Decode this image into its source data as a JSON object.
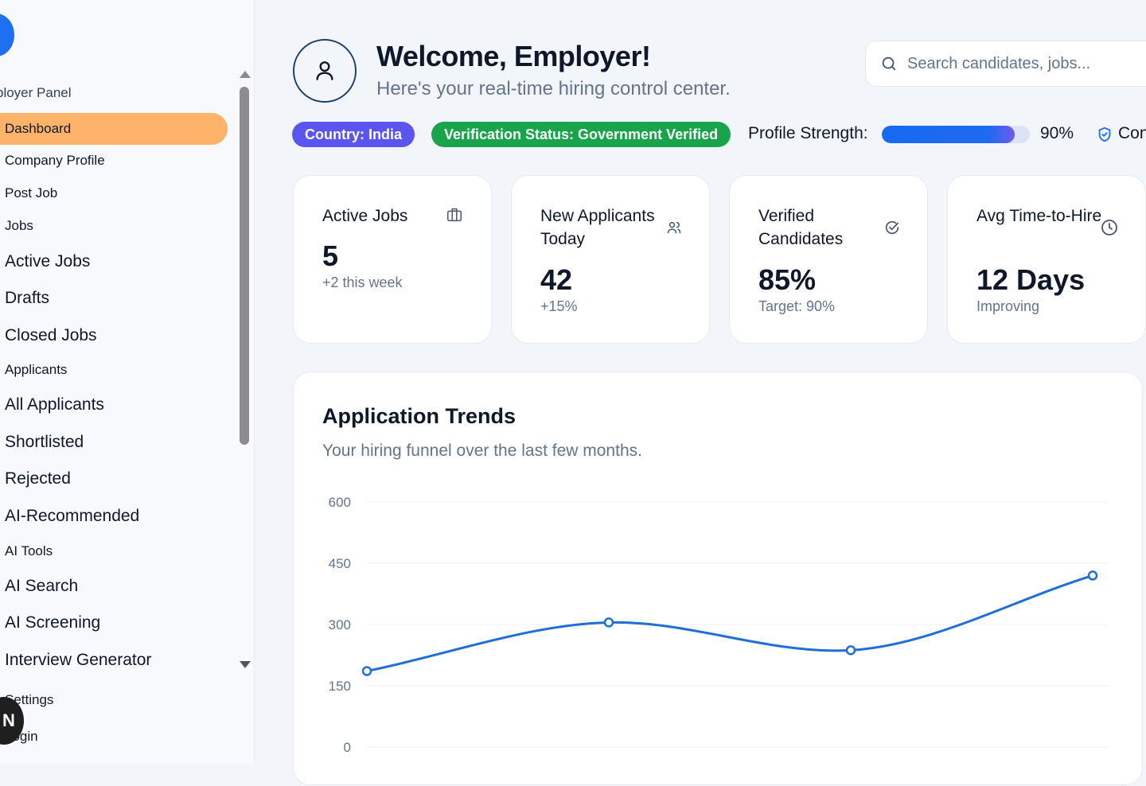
{
  "sidebar": {
    "panel_label": "ployer Panel",
    "items": [
      {
        "label": "Dashboard",
        "active": true
      },
      {
        "label": "Company Profile"
      },
      {
        "label": "Post Job"
      },
      {
        "label": "Jobs"
      },
      {
        "label": "Active Jobs"
      },
      {
        "label": "Drafts"
      },
      {
        "label": "Closed Jobs"
      },
      {
        "label": "Applicants"
      },
      {
        "label": "All Applicants"
      },
      {
        "label": "Shortlisted"
      },
      {
        "label": "Rejected"
      },
      {
        "label": "AI-Recommended"
      },
      {
        "label": "AI Tools"
      },
      {
        "label": "AI Search"
      },
      {
        "label": "AI Screening"
      },
      {
        "label": "Interview Generator"
      },
      {
        "label": "Settings"
      },
      {
        "label": "Login"
      }
    ],
    "badge": "N"
  },
  "header": {
    "title": "Welcome, Employer!",
    "subtitle": "Here's your real-time hiring control center.",
    "search_placeholder": "Search candidates, jobs..."
  },
  "status": {
    "country": "Country: India",
    "verification": "Verification Status: Government Verified",
    "strength_label": "Profile Strength:",
    "strength_value": "90%",
    "strength_fraction": 0.9,
    "compliance_text": "Con"
  },
  "stats": [
    {
      "title": "Active Jobs",
      "value": "5",
      "sub": "+2 this week",
      "icon": "briefcase-icon"
    },
    {
      "title": "New Applicants Today",
      "value": "42",
      "sub": "+15%",
      "icon": "users-icon"
    },
    {
      "title": "Verified Candidates",
      "value": "85%",
      "sub": "Target: 90%",
      "icon": "check-circle-icon"
    },
    {
      "title": "Avg Time-to-Hire",
      "value": "12 Days",
      "sub": "Improving",
      "icon": "clock-icon"
    }
  ],
  "chart": {
    "title": "Application Trends",
    "subtitle": "Your hiring funnel over the last few months."
  },
  "chart_data": {
    "type": "line",
    "title": "Application Trends",
    "ylim": [
      0,
      600
    ],
    "yticks": [
      0,
      150,
      300,
      450,
      600
    ],
    "series": [
      {
        "values": [
          186,
          305,
          237,
          420
        ]
      }
    ],
    "color": "#1f6fd6",
    "grid": true
  },
  "colors": {
    "accent": "#1f6ff2",
    "active_nav": "#fdb36a",
    "country_pill": "#5b55f0",
    "verified_pill": "#19a34a"
  }
}
